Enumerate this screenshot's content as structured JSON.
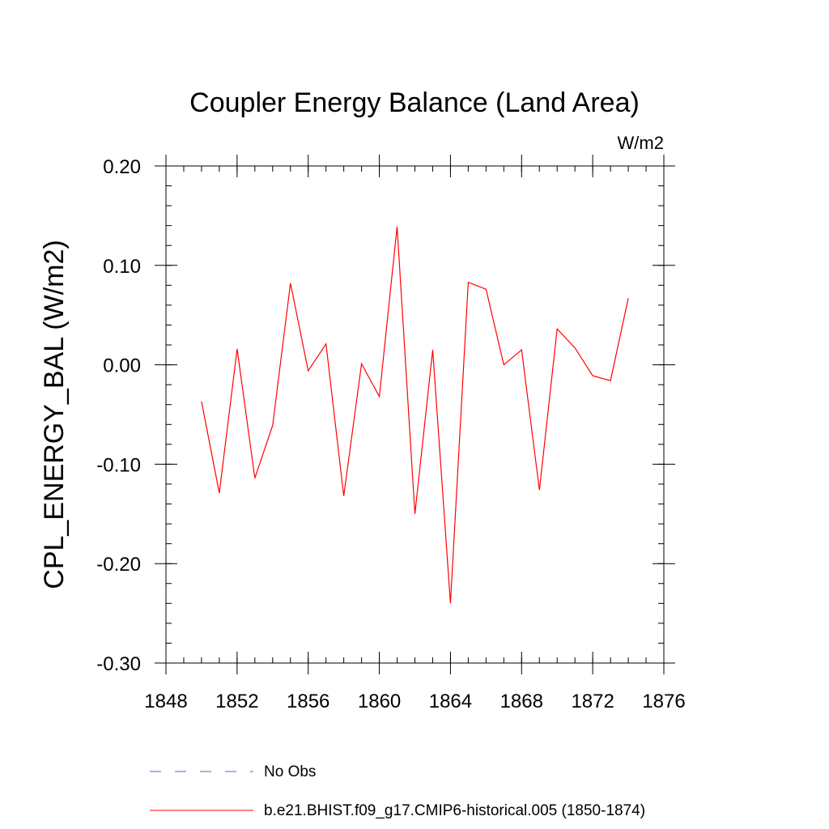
{
  "chart_data": {
    "type": "line",
    "title": "Coupler Energy Balance (Land Area)",
    "units_label": "W/m2",
    "ylabel": "CPL_ENERGY_BAL  (W/m2)",
    "xlabel": "",
    "xlim": [
      1848,
      1876
    ],
    "ylim": [
      -0.3,
      0.2
    ],
    "x_ticks": [
      1848,
      1852,
      1856,
      1860,
      1864,
      1868,
      1872,
      1876
    ],
    "x_tick_labels": [
      "1848",
      "1852",
      "1856",
      "1860",
      "1864",
      "1868",
      "1872",
      "1876"
    ],
    "y_ticks": [
      -0.3,
      -0.2,
      -0.1,
      0.0,
      0.1,
      0.2
    ],
    "y_tick_labels": [
      "-0.30",
      "-0.20",
      "-0.10",
      "0.00",
      "0.10",
      "0.20"
    ],
    "x_minor_step": 1,
    "y_minor_step": 0.02,
    "grid": false,
    "legend_position": "bottom",
    "series": [
      {
        "name": "b.e21.BHIST.f09_g17.CMIP6-historical.005 (1850-1874)",
        "color": "#ff0000",
        "style": "solid",
        "x": [
          1850,
          1851,
          1852,
          1853,
          1854,
          1855,
          1856,
          1857,
          1858,
          1859,
          1860,
          1861,
          1862,
          1863,
          1864,
          1865,
          1866,
          1867,
          1868,
          1869,
          1870,
          1871,
          1872,
          1873,
          1874
        ],
        "values": [
          -0.037,
          -0.129,
          0.016,
          -0.114,
          -0.061,
          0.082,
          -0.006,
          0.021,
          -0.132,
          0.001,
          -0.032,
          0.139,
          -0.15,
          0.015,
          -0.24,
          0.083,
          0.076,
          0.0,
          0.015,
          -0.126,
          0.036,
          0.017,
          -0.011,
          -0.016,
          0.067
        ]
      }
    ],
    "legend": [
      {
        "label": "No Obs",
        "color": "#6a5acd",
        "style": "dashed"
      },
      {
        "label": "b.e21.BHIST.f09_g17.CMIP6-historical.005 (1850-1874)",
        "color": "#ff0000",
        "style": "solid"
      }
    ]
  }
}
